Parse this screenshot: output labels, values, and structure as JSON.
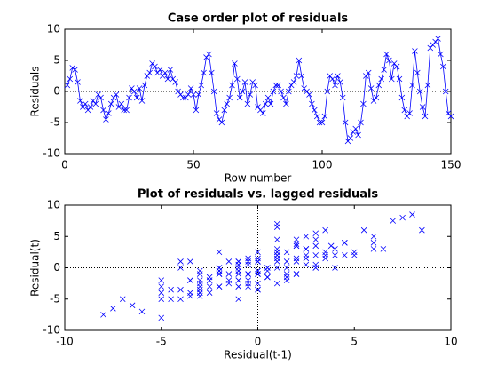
{
  "chart_data": [
    {
      "type": "line",
      "title": "Case order plot of residuals",
      "xlabel": "Row number",
      "ylabel": "Residuals",
      "x": [
        1,
        2,
        3,
        4,
        5,
        6,
        7,
        8,
        9,
        10,
        11,
        12,
        13,
        14,
        15,
        16,
        17,
        18,
        19,
        20,
        21,
        22,
        23,
        24,
        25,
        26,
        27,
        28,
        29,
        30,
        31,
        32,
        33,
        34,
        35,
        36,
        37,
        38,
        39,
        40,
        41,
        42,
        43,
        44,
        45,
        46,
        47,
        48,
        49,
        50,
        51,
        52,
        53,
        54,
        55,
        56,
        57,
        58,
        59,
        60,
        61,
        62,
        63,
        64,
        65,
        66,
        67,
        68,
        69,
        70,
        71,
        72,
        73,
        74,
        75,
        76,
        77,
        78,
        79,
        80,
        81,
        82,
        83,
        84,
        85,
        86,
        87,
        88,
        89,
        90,
        91,
        92,
        93,
        94,
        95,
        96,
        97,
        98,
        99,
        100,
        101,
        102,
        103,
        104,
        105,
        106,
        107,
        108,
        109,
        110,
        111,
        112,
        113,
        114,
        115,
        116,
        117,
        118,
        119,
        120,
        121,
        122,
        123,
        124,
        125,
        126,
        127,
        128,
        129,
        130,
        131,
        132,
        133,
        134,
        135,
        136,
        137,
        138,
        139,
        140,
        141,
        142,
        143,
        144,
        145,
        146,
        147,
        148,
        149,
        150
      ],
      "values": [
        1,
        2,
        3.8,
        3.5,
        1.5,
        -1.5,
        -2.5,
        -2,
        -3,
        -2.5,
        -1.5,
        -2,
        -0.5,
        -1,
        -3,
        -4.5,
        -3.5,
        -2,
        -1,
        -0.5,
        -2.5,
        -2,
        -3,
        -3,
        -1,
        0.5,
        0,
        -1,
        0.5,
        -1.5,
        1,
        2.5,
        3,
        4.5,
        4,
        3,
        3.5,
        2.5,
        3,
        2,
        3.5,
        2,
        1.5,
        0,
        -0.5,
        -1,
        -1,
        -0.5,
        0.5,
        -0.5,
        -3,
        -0.5,
        1,
        3,
        5.5,
        6,
        3,
        0,
        -3.5,
        -4.5,
        -5,
        -3,
        -2,
        -1,
        1,
        4.5,
        2,
        -1,
        0,
        1.5,
        -2,
        -0.5,
        1.5,
        1,
        -2.5,
        -3,
        -3.5,
        -2,
        -1,
        -2,
        0,
        1,
        1,
        0,
        -1,
        -2,
        0,
        1,
        1.5,
        2.5,
        5,
        2.5,
        0.5,
        0,
        -0.5,
        -2,
        -3,
        -4,
        -5,
        -5,
        -4,
        0,
        2.5,
        2,
        1,
        2.5,
        1.5,
        -1,
        -5,
        -8,
        -7.5,
        -6.5,
        -6,
        -7,
        -5,
        -2,
        2.5,
        3,
        0.5,
        -1.5,
        -1,
        1,
        2,
        3.5,
        6,
        5,
        2,
        4.5,
        4,
        2,
        -1,
        -3,
        -4,
        -3.5,
        1,
        6.5,
        3,
        0,
        -2.5,
        -4,
        1,
        7,
        7.5,
        8,
        8.5,
        6,
        4,
        0,
        -3.5,
        -4
      ],
      "color": "#0000ff",
      "xlim": [
        0,
        150
      ],
      "xticks": [
        0,
        50,
        100,
        150
      ],
      "ylim": [
        -10,
        10
      ],
      "yticks": [
        -10,
        -5,
        0,
        5,
        10
      ],
      "hlines": [
        0
      ],
      "vlines": []
    },
    {
      "type": "scatter",
      "title": "Plot of residuals vs. lagged residuals",
      "xlabel": "Residual(t-1)",
      "ylabel": "Residual(t)",
      "x": [
        1,
        2,
        3.8,
        3.5,
        1.5,
        -1.5,
        -2.5,
        -2,
        -3,
        -2.5,
        -1.5,
        -2,
        -0.5,
        -1,
        -3,
        -4.5,
        -3.5,
        -2,
        -1,
        -0.5,
        -2.5,
        -2,
        -3,
        -3,
        -1,
        0.5,
        0,
        -1,
        0.5,
        -1.5,
        1,
        2.5,
        3,
        4.5,
        4,
        3,
        3.5,
        2.5,
        3,
        2,
        3.5,
        2,
        1.5,
        0,
        -0.5,
        -1,
        -1,
        -0.5,
        0.5,
        -0.5,
        -3,
        -0.5,
        1,
        3,
        5.5,
        6,
        3,
        0,
        -3.5,
        -4.5,
        -5,
        -3,
        -2,
        -1,
        1,
        4.5,
        2,
        -1,
        0,
        1.5,
        -2,
        -0.5,
        1.5,
        1,
        -2.5,
        -3,
        -3.5,
        -2,
        -1,
        -2,
        0,
        1,
        1,
        0,
        -1,
        -2,
        0,
        1,
        1.5,
        2.5,
        5,
        2.5,
        0.5,
        0,
        -0.5,
        -2,
        -3,
        -4,
        -5,
        -5,
        -4,
        0,
        2.5,
        2,
        1,
        2.5,
        1.5,
        -1,
        -5,
        -8,
        -7.5,
        -6.5,
        -6,
        -7,
        -5,
        -2,
        2.5,
        3,
        0.5,
        -1.5,
        -1,
        1,
        2,
        3.5,
        6,
        5,
        2,
        4.5,
        4,
        2,
        -1,
        -3,
        -4,
        -3.5,
        1,
        6.5,
        3,
        0,
        -2.5,
        -4,
        1,
        7,
        7.5,
        8,
        8.5,
        6,
        4,
        0,
        -3.5
      ],
      "y": [
        2,
        3.8,
        3.5,
        1.5,
        -1.5,
        -2.5,
        -2,
        -3,
        -2.5,
        -1.5,
        -2,
        -0.5,
        -1,
        -3,
        -4.5,
        -3.5,
        -2,
        -1,
        -0.5,
        -2.5,
        -2,
        -3,
        -3,
        -1,
        0.5,
        0,
        -1,
        0.5,
        -1.5,
        1,
        2.5,
        3,
        4.5,
        4,
        3,
        3.5,
        2.5,
        3,
        2,
        3.5,
        2,
        1.5,
        0,
        -0.5,
        -1,
        -1,
        -0.5,
        0.5,
        -0.5,
        -3,
        -0.5,
        1,
        3,
        5.5,
        6,
        3,
        0,
        -3.5,
        -4.5,
        -5,
        -3,
        -2,
        -1,
        1,
        4.5,
        2,
        -1,
        0,
        1.5,
        -2,
        -0.5,
        1.5,
        1,
        -2.5,
        -3,
        -3.5,
        -2,
        -1,
        -2,
        0,
        1,
        1,
        0,
        -1,
        -2,
        0,
        1,
        1.5,
        2.5,
        5,
        2.5,
        0.5,
        0,
        -0.5,
        -2,
        -3,
        -4,
        -5,
        -5,
        -4,
        0,
        2.5,
        2,
        1,
        2.5,
        1.5,
        -1,
        -5,
        -8,
        -7.5,
        -6.5,
        -6,
        -7,
        -5,
        -2,
        2.5,
        3,
        0.5,
        -1.5,
        -1,
        1,
        2,
        3.5,
        6,
        5,
        2,
        4.5,
        4,
        2,
        -1,
        -3,
        -4,
        -3.5,
        1,
        6.5,
        3,
        0,
        -2.5,
        -4,
        1,
        7,
        7.5,
        8,
        8.5,
        6,
        4,
        0,
        -3.5,
        -4
      ],
      "color": "#0000ff",
      "xlim": [
        -10,
        10
      ],
      "xticks": [
        -10,
        -5,
        0,
        5,
        10
      ],
      "ylim": [
        -10,
        10
      ],
      "yticks": [
        -10,
        -5,
        0,
        5,
        10
      ],
      "hlines": [
        0
      ],
      "vlines": [
        0
      ]
    }
  ]
}
